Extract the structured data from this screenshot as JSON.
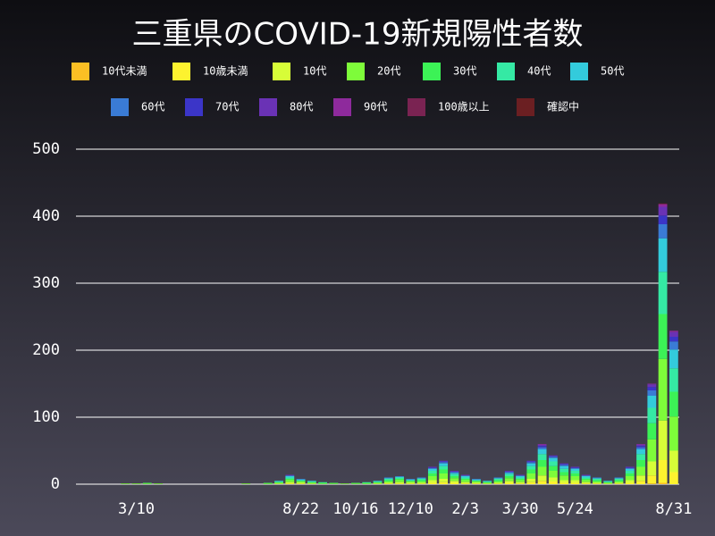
{
  "chart_data": {
    "type": "stacked_bar",
    "title": "三重県のCOVID-19新規陽性者数",
    "categories": [
      null,
      null,
      null,
      null,
      null,
      "3/10",
      null,
      null,
      null,
      null,
      null,
      null,
      null,
      null,
      null,
      null,
      null,
      null,
      null,
      null,
      "8/22",
      null,
      null,
      null,
      null,
      "10/16",
      null,
      null,
      null,
      null,
      "12/10",
      null,
      null,
      null,
      null,
      "2/3",
      null,
      null,
      null,
      null,
      "3/30",
      null,
      null,
      null,
      null,
      "5/24",
      null,
      null,
      null,
      null,
      null,
      null,
      null,
      null,
      "8/31"
    ],
    "ylim": [
      0,
      520
    ],
    "yticks": [
      0,
      100,
      200,
      300,
      400,
      500
    ],
    "grid": true,
    "series": [
      {
        "name": "10代未満",
        "color": "#fbbf24",
        "values": [
          0,
          0,
          0,
          0,
          0,
          0,
          0,
          0,
          0,
          0,
          0,
          0,
          0,
          0,
          0,
          0,
          0,
          0,
          0,
          0,
          0,
          0,
          0,
          0,
          0,
          0,
          0,
          0,
          0,
          0,
          0,
          0,
          0,
          0,
          0,
          0,
          0,
          0,
          0,
          0,
          0,
          0,
          0,
          0,
          0,
          0,
          0,
          0,
          0,
          0,
          0,
          0,
          1,
          2,
          0
        ]
      },
      {
        "name": "10歳未満",
        "color": "#fdf22f",
        "values": [
          0,
          0,
          0,
          0,
          0,
          0,
          0,
          0,
          0,
          0,
          0,
          0,
          0,
          0,
          0,
          0,
          0,
          0,
          0,
          1,
          1,
          0,
          0,
          0,
          0,
          0,
          0,
          0,
          1,
          1,
          1,
          1,
          2,
          3,
          2,
          1,
          1,
          0,
          1,
          2,
          1,
          3,
          5,
          4,
          2,
          2,
          1,
          1,
          0,
          1,
          2,
          5,
          12,
          34,
          18
        ]
      },
      {
        "name": "10代",
        "color": "#d7fd38",
        "values": [
          0,
          0,
          0,
          0,
          0,
          0,
          0,
          0,
          0,
          0,
          0,
          0,
          0,
          0,
          0,
          0,
          0,
          0,
          1,
          2,
          1,
          1,
          0,
          0,
          0,
          0,
          0,
          1,
          1,
          2,
          1,
          1,
          4,
          5,
          3,
          2,
          1,
          1,
          1,
          3,
          2,
          5,
          8,
          6,
          4,
          4,
          2,
          1,
          1,
          1,
          4,
          8,
          21,
          59,
          32
        ]
      },
      {
        "name": "20代",
        "color": "#7efc3a",
        "values": [
          0,
          0,
          0,
          0,
          1,
          1,
          1,
          1,
          0,
          0,
          0,
          0,
          0,
          0,
          0,
          1,
          0,
          1,
          1,
          3,
          2,
          1,
          1,
          1,
          1,
          1,
          1,
          1,
          2,
          3,
          2,
          2,
          6,
          8,
          4,
          3,
          2,
          1,
          2,
          4,
          3,
          8,
          13,
          10,
          7,
          6,
          3,
          2,
          1,
          2,
          6,
          13,
          33,
          92,
          51
        ]
      },
      {
        "name": "30代",
        "color": "#3cf256",
        "values": [
          0,
          0,
          0,
          0,
          0,
          0,
          1,
          0,
          0,
          0,
          0,
          0,
          0,
          0,
          0,
          0,
          0,
          1,
          1,
          2,
          1,
          1,
          1,
          1,
          0,
          1,
          1,
          1,
          2,
          2,
          1,
          2,
          4,
          6,
          3,
          2,
          1,
          1,
          2,
          3,
          2,
          6,
          10,
          7,
          5,
          4,
          2,
          2,
          1,
          2,
          4,
          10,
          24,
          67,
          37
        ]
      },
      {
        "name": "40代",
        "color": "#35e9a4",
        "values": [
          0,
          0,
          0,
          0,
          0,
          0,
          0,
          0,
          0,
          0,
          0,
          0,
          0,
          0,
          0,
          0,
          0,
          0,
          1,
          2,
          1,
          1,
          1,
          0,
          0,
          0,
          1,
          1,
          2,
          2,
          1,
          2,
          4,
          5,
          3,
          2,
          1,
          1,
          2,
          3,
          2,
          5,
          9,
          7,
          5,
          4,
          2,
          2,
          1,
          2,
          4,
          9,
          23,
          63,
          35
        ]
      },
      {
        "name": "50代",
        "color": "#33cbdc",
        "values": [
          0,
          0,
          0,
          0,
          0,
          0,
          0,
          0,
          0,
          0,
          0,
          0,
          0,
          0,
          0,
          0,
          0,
          0,
          1,
          2,
          1,
          1,
          0,
          0,
          0,
          0,
          0,
          1,
          1,
          1,
          1,
          1,
          3,
          4,
          2,
          2,
          1,
          1,
          1,
          2,
          2,
          4,
          7,
          5,
          4,
          3,
          2,
          1,
          1,
          1,
          3,
          7,
          18,
          50,
          28
        ]
      },
      {
        "name": "60代",
        "color": "#3a7bd5",
        "values": [
          0,
          0,
          0,
          0,
          0,
          0,
          0,
          0,
          0,
          0,
          0,
          0,
          0,
          0,
          0,
          0,
          0,
          0,
          0,
          1,
          1,
          0,
          0,
          0,
          0,
          0,
          0,
          0,
          1,
          1,
          1,
          1,
          1,
          2,
          1,
          1,
          1,
          0,
          1,
          1,
          1,
          2,
          3,
          2,
          2,
          1,
          1,
          1,
          0,
          1,
          1,
          3,
          8,
          21,
          12
        ]
      },
      {
        "name": "70代",
        "color": "#3b35c8",
        "values": [
          0,
          0,
          0,
          0,
          0,
          0,
          0,
          0,
          0,
          0,
          0,
          0,
          0,
          0,
          0,
          0,
          0,
          0,
          0,
          0,
          0,
          0,
          0,
          0,
          0,
          0,
          0,
          0,
          0,
          0,
          0,
          0,
          1,
          1,
          1,
          0,
          0,
          0,
          0,
          1,
          0,
          1,
          2,
          1,
          1,
          1,
          0,
          0,
          0,
          0,
          1,
          2,
          5,
          13,
          7
        ]
      },
      {
        "name": "80代",
        "color": "#6a32b5",
        "values": [
          0,
          0,
          0,
          0,
          0,
          0,
          0,
          0,
          0,
          0,
          0,
          0,
          0,
          0,
          0,
          0,
          0,
          0,
          0,
          1,
          0,
          0,
          0,
          0,
          0,
          0,
          0,
          0,
          0,
          0,
          0,
          0,
          1,
          1,
          1,
          1,
          0,
          0,
          0,
          1,
          1,
          1,
          2,
          1,
          1,
          1,
          1,
          0,
          0,
          0,
          1,
          2,
          4,
          13,
          7
        ]
      },
      {
        "name": "90代",
        "color": "#8e2a9c",
        "values": [
          0,
          0,
          0,
          0,
          0,
          0,
          0,
          0,
          0,
          0,
          0,
          0,
          0,
          0,
          0,
          0,
          0,
          0,
          0,
          0,
          0,
          0,
          0,
          0,
          0,
          0,
          0,
          0,
          0,
          0,
          0,
          0,
          0,
          0,
          0,
          0,
          0,
          0,
          0,
          0,
          0,
          0,
          1,
          0,
          0,
          0,
          0,
          0,
          0,
          0,
          0,
          1,
          1,
          4,
          2
        ]
      },
      {
        "name": "100歳以上",
        "color": "#7a2352",
        "values": [
          0,
          0,
          0,
          0,
          0,
          0,
          0,
          0,
          0,
          0,
          0,
          0,
          0,
          0,
          0,
          0,
          0,
          0,
          0,
          0,
          0,
          0,
          0,
          0,
          0,
          0,
          0,
          0,
          0,
          0,
          0,
          0,
          0,
          0,
          0,
          0,
          0,
          0,
          0,
          0,
          0,
          0,
          0,
          0,
          0,
          0,
          0,
          0,
          0,
          0,
          0,
          0,
          0,
          0,
          0
        ]
      },
      {
        "name": "確認中",
        "color": "#6b1f22",
        "values": [
          0,
          0,
          0,
          0,
          0,
          0,
          0,
          0,
          0,
          0,
          0,
          0,
          0,
          0,
          0,
          0,
          0,
          0,
          0,
          0,
          0,
          0,
          0,
          0,
          0,
          0,
          0,
          0,
          0,
          0,
          0,
          0,
          0,
          0,
          0,
          0,
          0,
          0,
          0,
          0,
          0,
          0,
          0,
          0,
          0,
          0,
          0,
          0,
          0,
          0,
          0,
          0,
          0,
          1,
          0
        ]
      }
    ]
  }
}
